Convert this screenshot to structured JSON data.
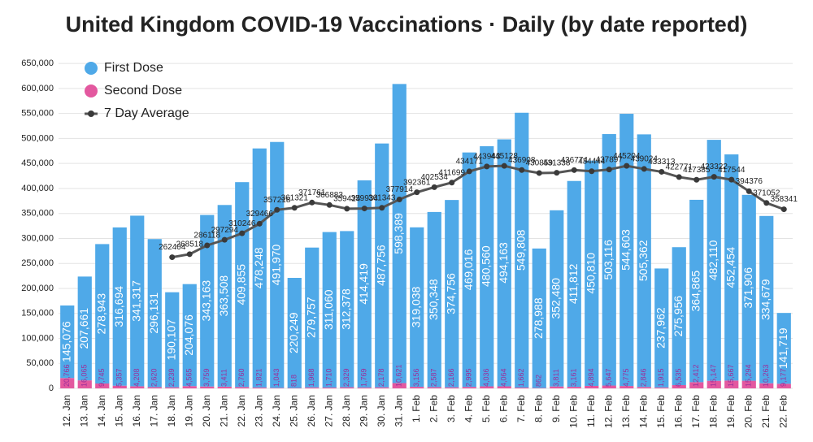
{
  "chart_data": {
    "type": "bar",
    "stacked": true,
    "title": "United Kingdom COVID-19 Vaccinations · Daily (by date reported)",
    "categories": [
      "12. Jan",
      "13. Jan",
      "14. Jan",
      "15. Jan",
      "16. Jan",
      "17. Jan",
      "18. Jan",
      "19. Jan",
      "20. Jan",
      "21. Jan",
      "22. Jan",
      "23. Jan",
      "24. Jan",
      "25. Jan",
      "26. Jan",
      "27. Jan",
      "28. Jan",
      "29. Jan",
      "30. Jan",
      "31. Jan",
      "1. Feb",
      "2. Feb",
      "3. Feb",
      "4. Feb",
      "5. Feb",
      "6. Feb",
      "7. Feb",
      "8. Feb",
      "9. Feb",
      "10. Feb",
      "11. Feb",
      "12. Feb",
      "13. Feb",
      "14. Feb",
      "15. Feb",
      "16. Feb",
      "17. Feb",
      "18. Feb",
      "19. Feb",
      "20. Feb",
      "21. Feb",
      "22. Feb"
    ],
    "series": [
      {
        "name": "First Dose",
        "color": "#4fa9e8",
        "values": [
          145076,
          207661,
          278943,
          316694,
          341317,
          296131,
          190107,
          204076,
          343163,
          363508,
          409855,
          478248,
          491970,
          220249,
          279757,
          311060,
          312378,
          414419,
          487756,
          598389,
          319038,
          350348,
          374756,
          469016,
          480560,
          494163,
          549808,
          278988,
          352480,
          411812,
          450810,
          503116,
          544603,
          505362,
          237962,
          275956,
          364865,
          482110,
          452454,
          371906,
          334679,
          141719
        ],
        "value_labels": [
          "145,076",
          "207,661",
          "278,943",
          "316,694",
          "341,317",
          "296,131",
          "190,107",
          "204,076",
          "343,163",
          "363,508",
          "409,855",
          "478,248",
          "491,970",
          "220,249",
          "279,757",
          "311,060",
          "312,378",
          "414,419",
          "487,756",
          "598,389",
          "319,038",
          "350,348",
          "374,756",
          "469,016",
          "480,560",
          "494,163",
          "549,808",
          "278,988",
          "352,480",
          "411,812",
          "450,810",
          "503,116",
          "544,603",
          "505,362",
          "237,962",
          "275,956",
          "364,865",
          "482,110",
          "452,454",
          "371,906",
          "334,679",
          "141,719"
        ]
      },
      {
        "name": "Second Dose",
        "color": "#e3589f",
        "values": [
          20766,
          16065,
          9745,
          5357,
          4208,
          2620,
          2239,
          4565,
          3759,
          3411,
          2760,
          1821,
          1043,
          818,
          1968,
          1710,
          2329,
          1769,
          2178,
          10621,
          3156,
          2587,
          2166,
          2995,
          4036,
          4064,
          1662,
          862,
          3811,
          3161,
          4894,
          5647,
          4775,
          2846,
          1915,
          6535,
          12412,
          15147,
          15667,
          15294,
          10263,
          9177
        ],
        "value_labels": [
          "20,766",
          "16,065",
          "9,745",
          "5,357",
          "4,208",
          "2,620",
          "2,239",
          "4,565",
          "3,759",
          "3,411",
          "2,760",
          "1,821",
          "1,043",
          "818",
          "1,968",
          "1,710",
          "2,329",
          "1,769",
          "2,178",
          "10,621",
          "3,156",
          "2,587",
          "2,166",
          "2,995",
          "4,036",
          "4,064",
          "1,662",
          "862",
          "3,811",
          "3,161",
          "4,894",
          "5,647",
          "4,775",
          "2,846",
          "1,915",
          "6,535",
          "12,412",
          "15,147",
          "15,667",
          "15,294",
          "10,263",
          "9,177"
        ]
      },
      {
        "name": "7 Day Average",
        "color": "#3a3a3a",
        "type": "line",
        "values": [
          null,
          null,
          null,
          null,
          null,
          null,
          262404,
          268518,
          286118,
          297294,
          310246,
          329466,
          357218,
          361321,
          371761,
          366883,
          359424,
          359934,
          361343,
          377914,
          392361,
          402534,
          411699,
          434171,
          443943,
          445128,
          436908,
          430859,
          431338,
          436774,
          434444,
          437897,
          445204,
          439024,
          433313,
          422771,
          417385,
          423322,
          417544,
          394376,
          371052,
          358341
        ]
      }
    ],
    "ylim": [
      0,
      660000
    ],
    "yticks": [
      {
        "value": 0,
        "label": "0"
      },
      {
        "value": 50000,
        "label": "50,000"
      },
      {
        "value": 100000,
        "label": "100,000"
      },
      {
        "value": 150000,
        "label": "150,000"
      },
      {
        "value": 200000,
        "label": "200,000"
      },
      {
        "value": 250000,
        "label": "250,000"
      },
      {
        "value": 300000,
        "label": "300,000"
      },
      {
        "value": 350000,
        "label": "350,000"
      },
      {
        "value": 400000,
        "label": "400,000"
      },
      {
        "value": 450000,
        "label": "450,000"
      },
      {
        "value": 500000,
        "label": "500,000"
      },
      {
        "value": 550000,
        "label": "550,000"
      },
      {
        "value": 600000,
        "label": "600,000"
      },
      {
        "value": 650000,
        "label": "650,000"
      }
    ],
    "grid": true,
    "legend": "top-left"
  }
}
